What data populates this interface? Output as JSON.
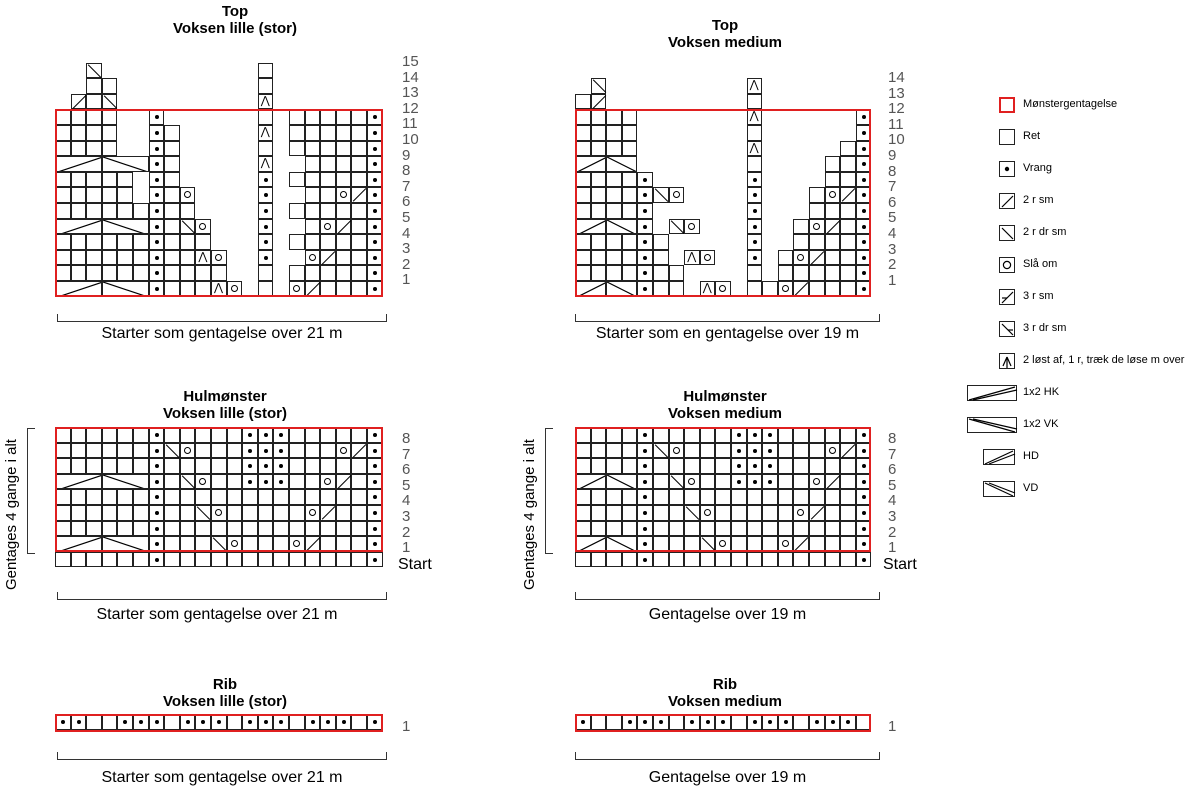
{
  "charts": {
    "top_small": {
      "title1": "Top",
      "title2": "Voksen lille (stor)",
      "caption": "Starter som gentagelse over 21 m",
      "rows": [
        "15",
        "14",
        "13",
        "12",
        "11",
        "10",
        "9",
        "8",
        "7",
        "6",
        "5",
        "4",
        "3",
        "2",
        "1"
      ]
    },
    "top_medium": {
      "title1": "Top",
      "title2": "Voksen medium",
      "caption": "Starter som en gentagelse over 19 m",
      "rows": [
        "14",
        "13",
        "12",
        "11",
        "10",
        "9",
        "8",
        "7",
        "6",
        "5",
        "4",
        "3",
        "2",
        "1"
      ]
    },
    "lace_small": {
      "title1": "Hulmønster",
      "title2": "Voksen lille (stor)",
      "caption": "Starter som gentagelse over 21 m",
      "rows": [
        "8",
        "7",
        "6",
        "5",
        "4",
        "3",
        "2",
        "1"
      ],
      "side": "Gentages 4 gange i alt",
      "start": "Start"
    },
    "lace_medium": {
      "title1": "Hulmønster",
      "title2": "Voksen medium",
      "caption": "Gentagelse over 19 m",
      "rows": [
        "8",
        "7",
        "6",
        "5",
        "4",
        "3",
        "2",
        "1"
      ],
      "side": "Gentages 4 gange i alt",
      "start": "Start"
    },
    "rib_small": {
      "title1": "Rib",
      "title2": "Voksen lille (stor)",
      "caption": "Starter som gentagelse over 21 m",
      "rows": [
        "1"
      ]
    },
    "rib_medium": {
      "title1": "Rib",
      "title2": "Voksen medium",
      "caption": "Gentagelse over 19 m",
      "rows": [
        "1"
      ]
    }
  },
  "legend": [
    {
      "icon": "repeat-icon",
      "label": "Mønstergentagelse"
    },
    {
      "icon": "knit-icon",
      "label": "Ret"
    },
    {
      "icon": "purl-icon",
      "label": "Vrang"
    },
    {
      "icon": "k2tog-icon",
      "label": "2 r sm"
    },
    {
      "icon": "ssk-icon",
      "label": "2 r dr sm"
    },
    {
      "icon": "yarnover-icon",
      "label": "Slå om"
    },
    {
      "icon": "k3tog-icon",
      "label": "3 r sm"
    },
    {
      "icon": "sssk-icon",
      "label": "3 r dr sm"
    },
    {
      "icon": "centered-double-dec-icon",
      "label": "2 løst af, 1 r, træk de løse m over"
    },
    {
      "icon": "cable-1x2-right-icon",
      "label": "1x2 HK"
    },
    {
      "icon": "cable-1x2-left-icon",
      "label": "1x2 VK"
    },
    {
      "icon": "right-twist-icon",
      "label": "HD"
    },
    {
      "icon": "left-twist-icon",
      "label": "VD"
    }
  ]
}
